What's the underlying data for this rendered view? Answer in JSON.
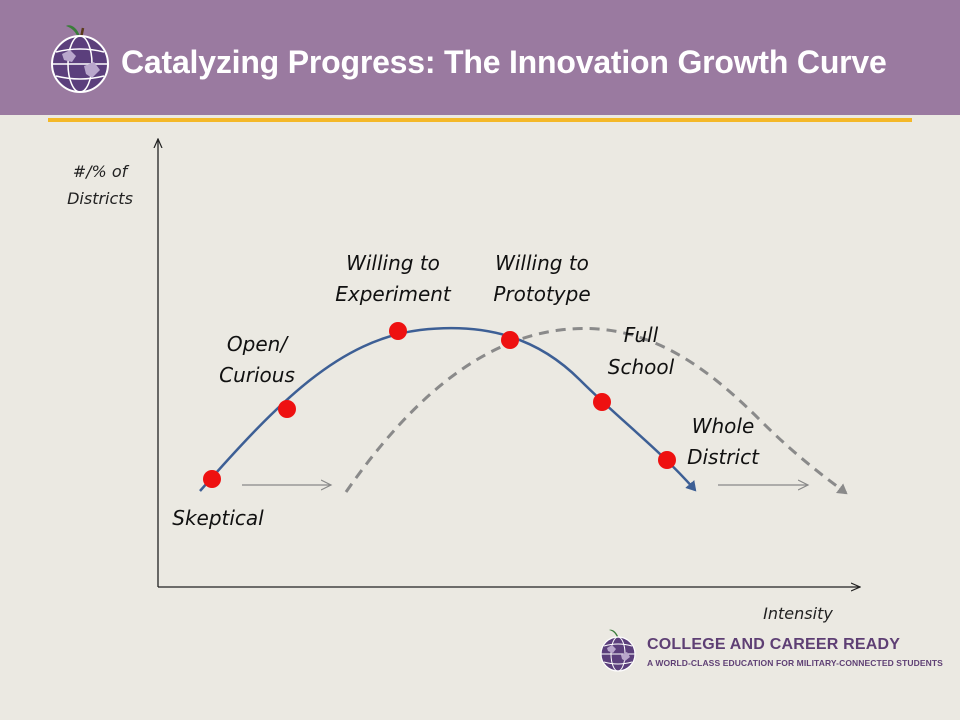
{
  "header": {
    "title": "Catalyzing Progress: The Innovation Growth Curve",
    "background_color": "#9a7aa0",
    "accent_line_color": "#f4b828",
    "logo_icon": "globe-apple-icon"
  },
  "diagram": {
    "y_axis_label_line1": "#/% of",
    "y_axis_label_line2": "Districts",
    "x_axis_label": "Intensity",
    "stages": [
      {
        "line1": "Skeptical",
        "line2": ""
      },
      {
        "line1": "Open/",
        "line2": "Curious"
      },
      {
        "line1": "Willing to",
        "line2": "Experiment"
      },
      {
        "line1": "Willing to",
        "line2": "Prototype"
      },
      {
        "line1": "Full",
        "line2": "School"
      },
      {
        "line1": "Whole",
        "line2": "District"
      }
    ],
    "solid_curve_color": "#3d5f95",
    "dashed_curve_color": "#8a8a8a",
    "point_color": "#ee1111"
  },
  "footer": {
    "brand": "COLLEGE AND CAREER READY",
    "tagline": "A WORLD-CLASS EDUCATION FOR MILITARY-CONNECTED STUDENTS",
    "logo_icon": "globe-apple-icon"
  }
}
